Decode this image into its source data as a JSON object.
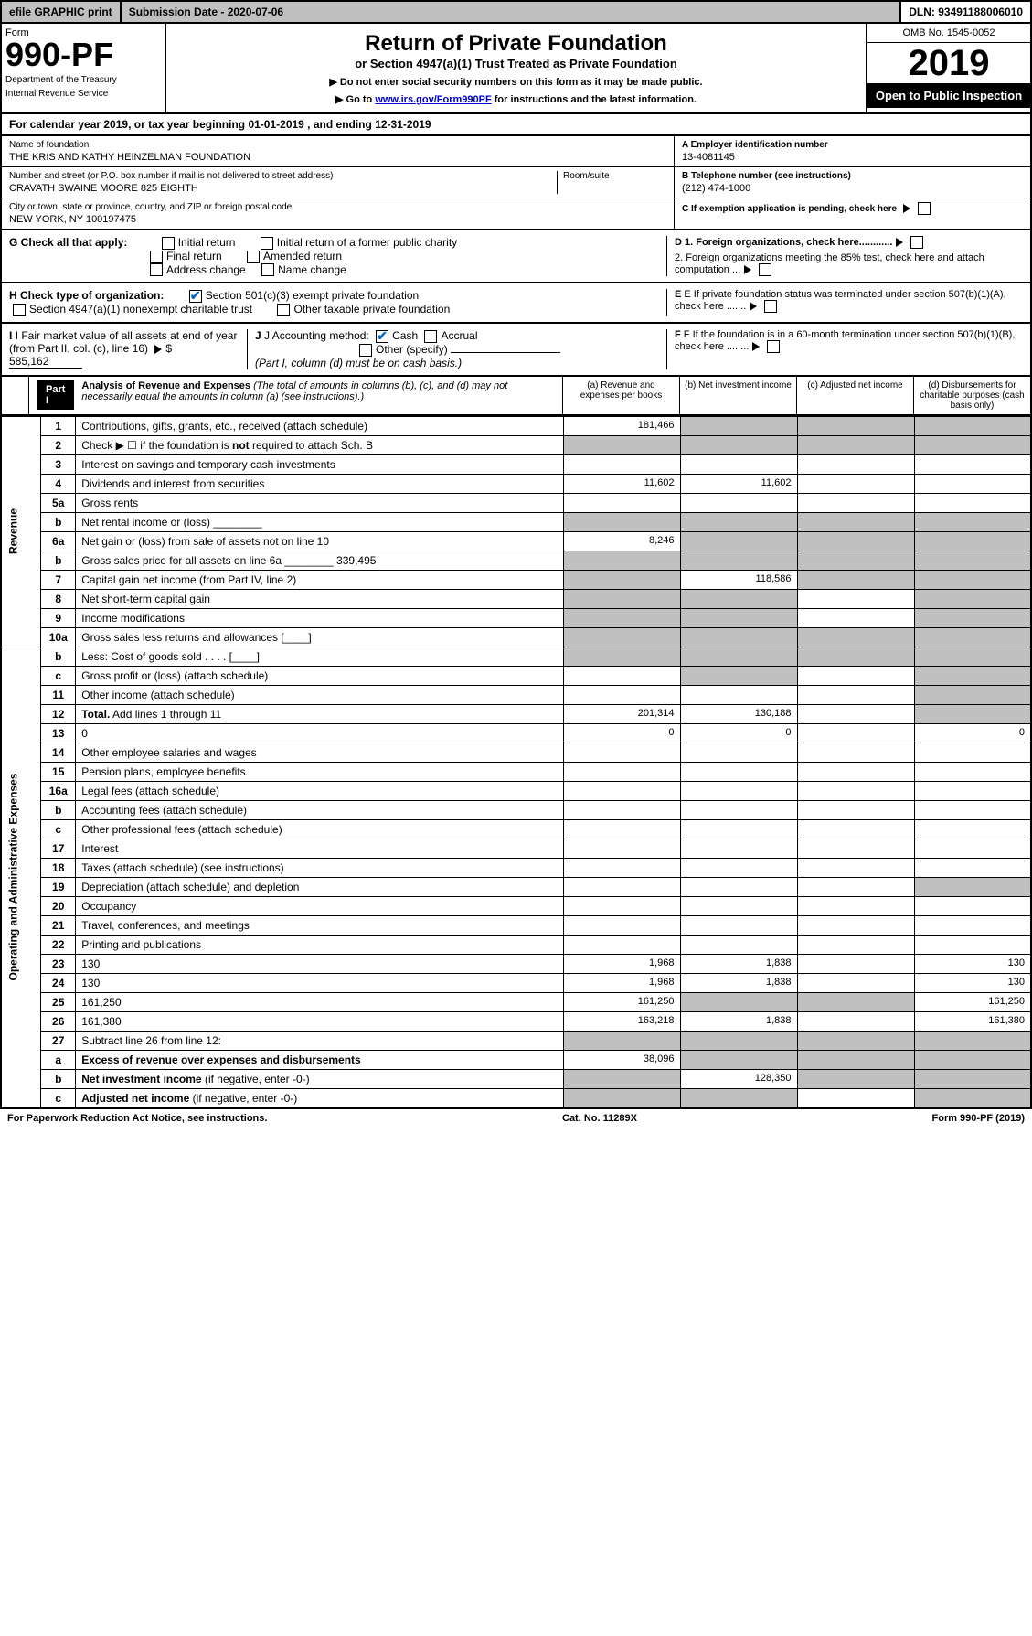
{
  "topbar": {
    "efile": "efile GRAPHIC print",
    "submission": "Submission Date - 2020-07-06",
    "dln": "DLN: 93491188006010"
  },
  "header": {
    "form_label": "Form",
    "form_number": "990-PF",
    "dept1": "Department of the Treasury",
    "dept2": "Internal Revenue Service",
    "title": "Return of Private Foundation",
    "subtitle": "or Section 4947(a)(1) Trust Treated as Private Foundation",
    "note1": "▶ Do not enter social security numbers on this form as it may be made public.",
    "note2_pre": "▶ Go to ",
    "note2_link": "www.irs.gov/Form990PF",
    "note2_post": " for instructions and the latest information.",
    "omb": "OMB No. 1545-0052",
    "year": "2019",
    "open": "Open to Public Inspection"
  },
  "calendar": {
    "text_pre": "For calendar year 2019, or tax year beginning ",
    "begin": "01-01-2019",
    "text_mid": " , and ending ",
    "end": "12-31-2019"
  },
  "entity": {
    "name_lbl": "Name of foundation",
    "name": "THE KRIS AND KATHY HEINZELMAN FOUNDATION",
    "addr_lbl": "Number and street (or P.O. box number if mail is not delivered to street address)",
    "addr": "CRAVATH SWAINE MOORE 825 EIGHTH",
    "room_lbl": "Room/suite",
    "city_lbl": "City or town, state or province, country, and ZIP or foreign postal code",
    "city": "NEW YORK, NY  100197475",
    "a_lbl": "A Employer identification number",
    "a_val": "13-4081145",
    "b_lbl": "B Telephone number (see instructions)",
    "b_val": "(212) 474-1000",
    "c_lbl": "C If exemption application is pending, check here"
  },
  "checks": {
    "g_lbl": "G Check all that apply:",
    "g_opts": [
      "Initial return",
      "Initial return of a former public charity",
      "Final return",
      "Amended return",
      "Address change",
      "Name change"
    ],
    "h_lbl": "H Check type of organization:",
    "h1": "Section 501(c)(3) exempt private foundation",
    "h2": "Section 4947(a)(1) nonexempt charitable trust",
    "h3": "Other taxable private foundation",
    "i_lbl": "I Fair market value of all assets at end of year (from Part II, col. (c), line 16)",
    "i_val": "585,162",
    "j_lbl": "J Accounting method:",
    "j_cash": "Cash",
    "j_accrual": "Accrual",
    "j_other": "Other (specify)",
    "j_note": "(Part I, column (d) must be on cash basis.)",
    "d1": "D 1. Foreign organizations, check here............",
    "d2": "2. Foreign organizations meeting the 85% test, check here and attach computation ...",
    "e": "E If private foundation status was terminated under section 507(b)(1)(A), check here .......",
    "f": "F If the foundation is in a 60-month termination under section 507(b)(1)(B), check here ........"
  },
  "part1": {
    "label": "Part I",
    "title": "Analysis of Revenue and Expenses",
    "note": "(The total of amounts in columns (b), (c), and (d) may not necessarily equal the amounts in column (a) (see instructions).)",
    "col_a": "(a)  Revenue and expenses per books",
    "col_b": "(b)  Net investment income",
    "col_c": "(c)  Adjusted net income",
    "col_d": "(d)  Disbursements for charitable purposes (cash basis only)"
  },
  "vert": {
    "revenue": "Revenue",
    "expenses": "Operating and Administrative Expenses"
  },
  "rows": [
    {
      "n": "1",
      "d": "Contributions, gifts, grants, etc., received (attach schedule)",
      "a": "181,466",
      "b": "",
      "shade_bcd": true
    },
    {
      "n": "2",
      "d": "Check ▶ ☐ if the foundation is <b>not</b> required to attach Sch. B",
      "allshade": true
    },
    {
      "n": "3",
      "d": "Interest on savings and temporary cash investments",
      "a": "",
      "b": ""
    },
    {
      "n": "4",
      "d": "Dividends and interest from securities",
      "a": "11,602",
      "b": "11,602"
    },
    {
      "n": "5a",
      "d": "Gross rents",
      "a": "",
      "b": ""
    },
    {
      "n": "b",
      "d": "Net rental income or (loss) ________",
      "allshade": true
    },
    {
      "n": "6a",
      "d": "Net gain or (loss) from sale of assets not on line 10",
      "a": "8,246",
      "shade_bcd": true
    },
    {
      "n": "b",
      "d": "Gross sales price for all assets on line 6a ________ 339,495",
      "allshade": true
    },
    {
      "n": "7",
      "d": "Capital gain net income (from Part IV, line 2)",
      "shade_a": true,
      "b": "118,586",
      "shade_cd": true
    },
    {
      "n": "8",
      "d": "Net short-term capital gain",
      "shade_ab": true,
      "shade_d": true
    },
    {
      "n": "9",
      "d": "Income modifications",
      "shade_ab": true,
      "shade_d": true
    },
    {
      "n": "10a",
      "d": "Gross sales less returns and allowances [____]",
      "allshade": true
    },
    {
      "n": "b",
      "d": "Less: Cost of goods sold     . . . . [____]",
      "allshade": true
    },
    {
      "n": "c",
      "d": "Gross profit or (loss) (attach schedule)",
      "shade_b": true,
      "shade_d": true
    },
    {
      "n": "11",
      "d": "Other income (attach schedule)",
      "shade_d": true
    },
    {
      "n": "12",
      "d": "<b>Total.</b> Add lines 1 through 11",
      "a": "201,314",
      "b": "130,188",
      "shade_d": true
    },
    {
      "n": "13",
      "d": "0",
      "a": "0",
      "b": "0"
    },
    {
      "n": "14",
      "d": "Other employee salaries and wages"
    },
    {
      "n": "15",
      "d": "Pension plans, employee benefits"
    },
    {
      "n": "16a",
      "d": "Legal fees (attach schedule)"
    },
    {
      "n": "b",
      "d": "Accounting fees (attach schedule)"
    },
    {
      "n": "c",
      "d": "Other professional fees (attach schedule)"
    },
    {
      "n": "17",
      "d": "Interest"
    },
    {
      "n": "18",
      "d": "Taxes (attach schedule) (see instructions)"
    },
    {
      "n": "19",
      "d": "Depreciation (attach schedule) and depletion",
      "shade_d": true
    },
    {
      "n": "20",
      "d": "Occupancy"
    },
    {
      "n": "21",
      "d": "Travel, conferences, and meetings"
    },
    {
      "n": "22",
      "d": "Printing and publications"
    },
    {
      "n": "23",
      "d": "130",
      "a": "1,968",
      "b": "1,838"
    },
    {
      "n": "24",
      "d": "130",
      "a": "1,968",
      "b": "1,838"
    },
    {
      "n": "25",
      "d": "161,250",
      "a": "161,250",
      "shade_bc": true
    },
    {
      "n": "26",
      "d": "161,380",
      "a": "163,218",
      "b": "1,838"
    },
    {
      "n": "27",
      "d": "Subtract line 26 from line 12:",
      "allshade": true
    },
    {
      "n": "a",
      "d": "<b>Excess of revenue over expenses and disbursements</b>",
      "a": "38,096",
      "shade_bcd": true
    },
    {
      "n": "b",
      "d": "<b>Net investment income</b> (if negative, enter -0-)",
      "shade_a": true,
      "b": "128,350",
      "shade_cd": true
    },
    {
      "n": "c",
      "d": "<b>Adjusted net income</b> (if negative, enter -0-)",
      "shade_ab": true,
      "shade_d": true
    }
  ],
  "footer": {
    "left": "For Paperwork Reduction Act Notice, see instructions.",
    "mid": "Cat. No. 11289X",
    "right": "Form 990-PF (2019)"
  }
}
